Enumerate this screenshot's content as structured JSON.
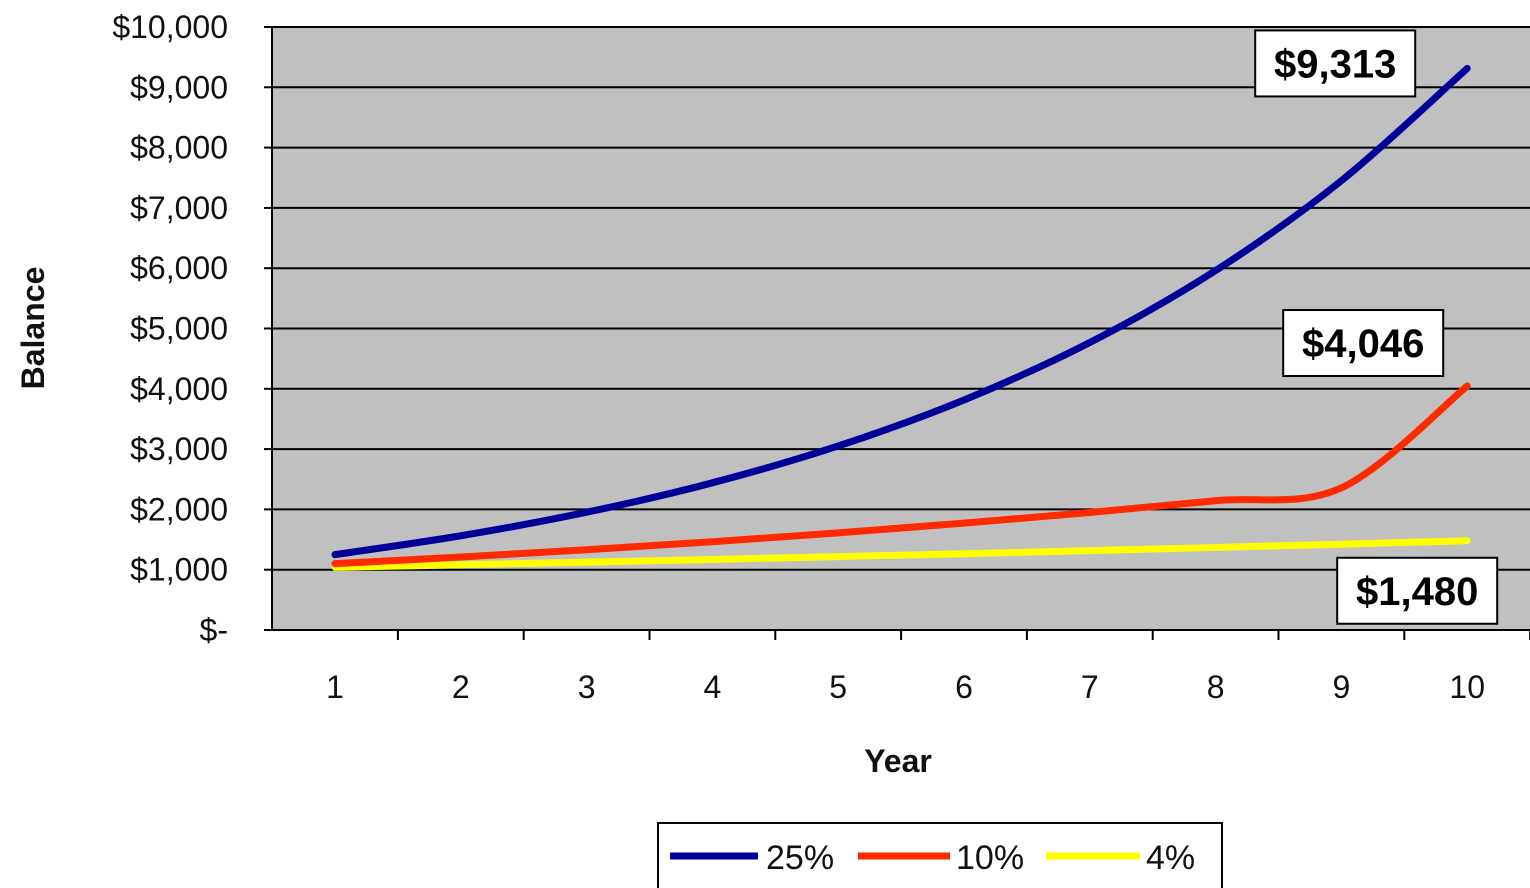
{
  "chart_data": {
    "type": "line",
    "xlabel": "Year",
    "ylabel": "Balance",
    "x": [
      1,
      2,
      3,
      4,
      5,
      6,
      7,
      8,
      9,
      10
    ],
    "ylim": [
      0,
      10000
    ],
    "yticks": [
      0,
      1000,
      2000,
      3000,
      4000,
      5000,
      6000,
      7000,
      8000,
      9000,
      10000
    ],
    "ytick_labels": [
      "$-",
      "$1,000",
      "$2,000",
      "$3,000",
      "$4,000",
      "$5,000",
      "$6,000",
      "$7,000",
      "$8,000",
      "$9,000",
      "$10,000"
    ],
    "grid": true,
    "plot_background": "#c0c0c0",
    "legend_position": "bottom",
    "series": [
      {
        "name": "25%",
        "color": "#000099",
        "values": [
          1250,
          1563,
          1953,
          2441,
          3052,
          3815,
          4768,
          5960,
          7451,
          9313
        ]
      },
      {
        "name": "10%",
        "color": "#ff2a00",
        "values": [
          1100,
          1210,
          1331,
          1464,
          1611,
          1772,
          1949,
          2144,
          2358,
          4046
        ]
      },
      {
        "name": "4%",
        "color": "#ffff00",
        "values": [
          1040,
          1082,
          1125,
          1170,
          1217,
          1265,
          1316,
          1369,
          1423,
          1480
        ]
      }
    ],
    "annotations": [
      {
        "series": "25%",
        "text": "$9,313"
      },
      {
        "series": "10%",
        "text": "$4,046"
      },
      {
        "series": "4%",
        "text": "$1,480"
      }
    ]
  }
}
